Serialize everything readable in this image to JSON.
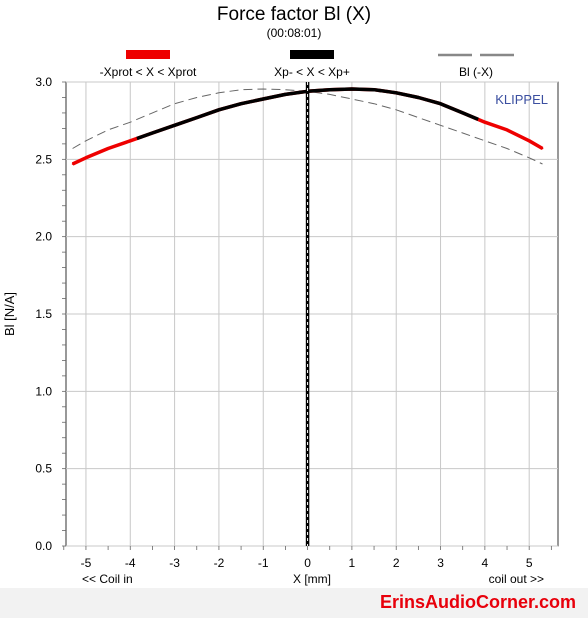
{
  "chart_data": {
    "type": "line",
    "title": "Force factor Bl (X)",
    "subtitle": "(00:08:01)",
    "xlabel": "X [mm]",
    "ylabel": "Bl [N/A]",
    "xlim": [
      -5.45,
      5.65
    ],
    "ylim": [
      0,
      3.0
    ],
    "x_ticks": [
      -5,
      -4,
      -3,
      -2,
      -1,
      0,
      1,
      2,
      3,
      4,
      5
    ],
    "y_ticks": [
      0.0,
      0.5,
      1.0,
      1.5,
      2.0,
      2.5,
      3.0
    ],
    "x_tick_labels": [
      "-5",
      "-4",
      "-3",
      "-2",
      "-1",
      "0",
      "1",
      "2",
      "3",
      "4",
      "5"
    ],
    "y_tick_labels": [
      "0.0",
      "0.5",
      "1.0",
      "1.5",
      "2.0",
      "2.5",
      "3.0"
    ],
    "grid": true,
    "left_note": "<< Coil in",
    "right_note": "coil out >>",
    "brand_label": "KLIPPEL",
    "legend": [
      {
        "label": "-Xprot < X < Xprot",
        "color": "#ee0000",
        "style": "solid-thick"
      },
      {
        "label": "Xp- < X < Xp+",
        "color": "#000000",
        "style": "solid-thick"
      },
      {
        "label": "Bl (-X)",
        "color": "#888888",
        "style": "dashed"
      }
    ],
    "xprot_range": [
      -3.85,
      3.85
    ],
    "vertical_marker_x": 0,
    "series": [
      {
        "name": "Bl (X)",
        "color": "#ee0000",
        "x": [
          -5.3,
          -5.0,
          -4.5,
          -4.0,
          -3.5,
          -3.0,
          -2.5,
          -2.0,
          -1.5,
          -1.0,
          -0.5,
          0.0,
          0.5,
          1.0,
          1.5,
          2.0,
          2.5,
          3.0,
          3.5,
          4.0,
          4.5,
          5.0,
          5.3
        ],
        "y": [
          2.47,
          2.51,
          2.57,
          2.62,
          2.67,
          2.72,
          2.77,
          2.82,
          2.86,
          2.89,
          2.92,
          2.94,
          2.95,
          2.955,
          2.95,
          2.93,
          2.9,
          2.86,
          2.8,
          2.74,
          2.69,
          2.62,
          2.57
        ]
      },
      {
        "name": "Bl (-X)",
        "color": "#666666",
        "x": [
          -5.3,
          -5.0,
          -4.5,
          -4.0,
          -3.5,
          -3.0,
          -2.5,
          -2.0,
          -1.5,
          -1.0,
          -0.5,
          0.0,
          0.5,
          1.0,
          1.5,
          2.0,
          2.5,
          3.0,
          3.5,
          4.0,
          4.5,
          5.0,
          5.3
        ],
        "y": [
          2.57,
          2.62,
          2.69,
          2.74,
          2.8,
          2.86,
          2.9,
          2.93,
          2.95,
          2.955,
          2.95,
          2.94,
          2.92,
          2.89,
          2.86,
          2.82,
          2.77,
          2.72,
          2.67,
          2.62,
          2.57,
          2.51,
          2.47
        ]
      }
    ]
  },
  "watermark": "ErinsAudioCorner.com"
}
